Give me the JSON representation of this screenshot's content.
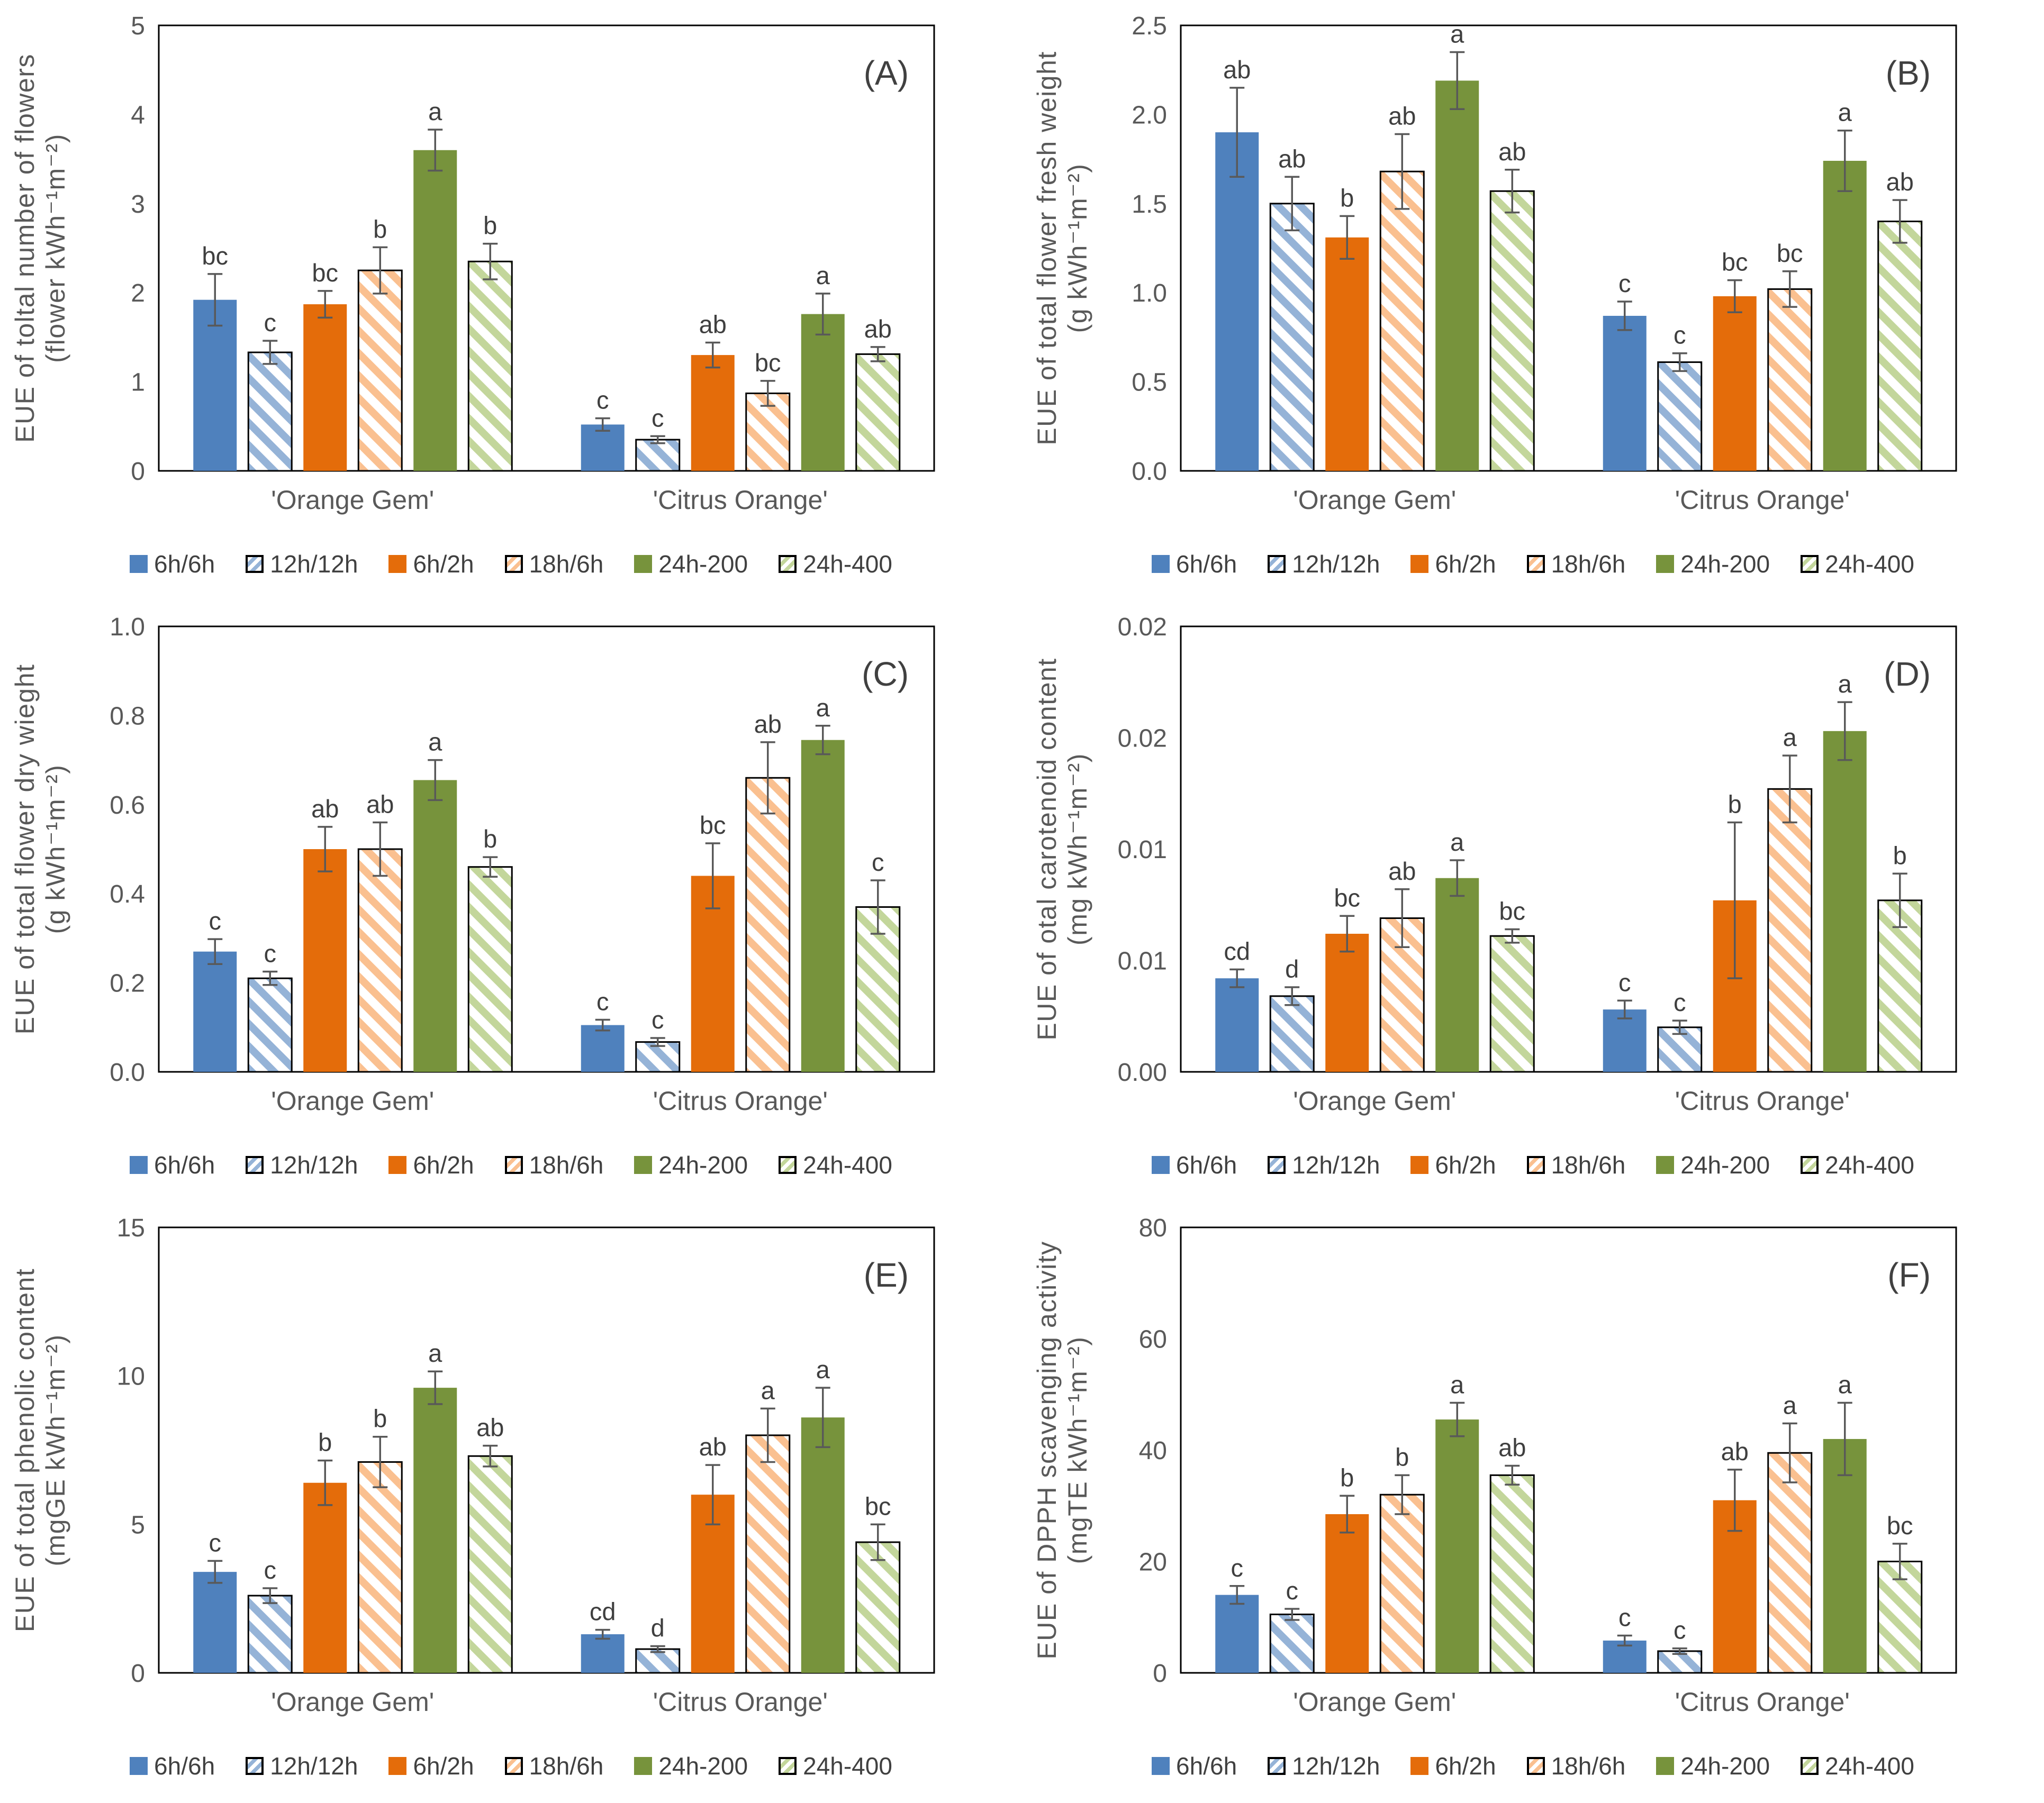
{
  "figure": {
    "groups": [
      "'Orange Gem'",
      "'Citrus Orange'"
    ],
    "colors": {
      "axis_text": "#595959",
      "letter_text": "#3f3f3f",
      "panel_tag": "#404040",
      "error_bar": "#595959",
      "frame": "#000000",
      "background": "#ffffff"
    },
    "legend": [
      {
        "label": "6h/6h",
        "color": "#4F81BD",
        "hatched": false
      },
      {
        "label": "12h/12h",
        "color": "#95B3D7",
        "hatched": true
      },
      {
        "label": "6h/2h",
        "color": "#E46C0A",
        "hatched": false
      },
      {
        "label": "18h/6h",
        "color": "#FAC090",
        "hatched": true
      },
      {
        "label": "24h-200",
        "color": "#77933C",
        "hatched": false
      },
      {
        "label": "24h-400",
        "color": "#C3D69B",
        "hatched": true
      }
    ]
  },
  "chart_data": [
    {
      "type": "bar",
      "tag": "(A)",
      "ylabel": "EUE of toltal number of flowers",
      "yunit": "(flower kWh⁻¹m⁻²)",
      "ylim": [
        0,
        5
      ],
      "yticks": [
        {
          "v": 0,
          "t": "0"
        },
        {
          "v": 1,
          "t": "1"
        },
        {
          "v": 2,
          "t": "2"
        },
        {
          "v": 3,
          "t": "3"
        },
        {
          "v": 4,
          "t": "4"
        },
        {
          "v": 5,
          "t": "5"
        }
      ],
      "categories": [
        "'Orange Gem'",
        "'Citrus Orange'"
      ],
      "legend_position": "bottom",
      "grid": false,
      "series": [
        {
          "name": "6h/6h",
          "values": [
            1.92,
            0.52
          ],
          "errors": [
            0.29,
            0.07
          ],
          "letters": [
            "bc",
            "c"
          ]
        },
        {
          "name": "12h/12h",
          "values": [
            1.33,
            0.35
          ],
          "errors": [
            0.13,
            0.04
          ],
          "letters": [
            "c",
            "c"
          ]
        },
        {
          "name": "6h/2h",
          "values": [
            1.87,
            1.3
          ],
          "errors": [
            0.15,
            0.14
          ],
          "letters": [
            "bc",
            "ab"
          ]
        },
        {
          "name": "18h/6h",
          "values": [
            2.25,
            0.87
          ],
          "errors": [
            0.26,
            0.14
          ],
          "letters": [
            "b",
            "bc"
          ]
        },
        {
          "name": "24h-200",
          "values": [
            3.6,
            1.76
          ],
          "errors": [
            0.23,
            0.23
          ],
          "letters": [
            "a",
            "a"
          ]
        },
        {
          "name": "24h-400",
          "values": [
            2.35,
            1.31
          ],
          "errors": [
            0.2,
            0.08
          ],
          "letters": [
            "b",
            "ab"
          ]
        }
      ]
    },
    {
      "type": "bar",
      "tag": "(B)",
      "ylabel": "EUE of total flower fresh weight",
      "yunit": "(g kWh⁻¹m⁻²)",
      "ylim": [
        0,
        2.5
      ],
      "yticks": [
        {
          "v": 0,
          "t": "0.0"
        },
        {
          "v": 0.5,
          "t": "0.5"
        },
        {
          "v": 1.0,
          "t": "1.0"
        },
        {
          "v": 1.5,
          "t": "1.5"
        },
        {
          "v": 2.0,
          "t": "2.0"
        },
        {
          "v": 2.5,
          "t": "2.5"
        }
      ],
      "categories": [
        "'Orange Gem'",
        "'Citrus Orange'"
      ],
      "legend_position": "bottom",
      "grid": false,
      "series": [
        {
          "name": "6h/6h",
          "values": [
            1.9,
            0.87
          ],
          "errors": [
            0.25,
            0.08
          ],
          "letters": [
            "ab",
            "c"
          ]
        },
        {
          "name": "12h/12h",
          "values": [
            1.5,
            0.61
          ],
          "errors": [
            0.15,
            0.05
          ],
          "letters": [
            "ab",
            "c"
          ]
        },
        {
          "name": "6h/2h",
          "values": [
            1.31,
            0.98
          ],
          "errors": [
            0.12,
            0.09
          ],
          "letters": [
            "b",
            "bc"
          ]
        },
        {
          "name": "18h/6h",
          "values": [
            1.68,
            1.02
          ],
          "errors": [
            0.21,
            0.1
          ],
          "letters": [
            "ab",
            "bc"
          ]
        },
        {
          "name": "24h-200",
          "values": [
            2.19,
            1.74
          ],
          "errors": [
            0.16,
            0.17
          ],
          "letters": [
            "a",
            "a"
          ]
        },
        {
          "name": "24h-400",
          "values": [
            1.57,
            1.4
          ],
          "errors": [
            0.12,
            0.12
          ],
          "letters": [
            "ab",
            "ab"
          ]
        }
      ]
    },
    {
      "type": "bar",
      "tag": "(C)",
      "ylabel": "EUE of total flower dry wieght",
      "yunit": "(g kWh⁻¹m⁻²)",
      "ylim": [
        0,
        1.0
      ],
      "yticks": [
        {
          "v": 0,
          "t": "0.0"
        },
        {
          "v": 0.2,
          "t": "0.2"
        },
        {
          "v": 0.4,
          "t": "0.4"
        },
        {
          "v": 0.6,
          "t": "0.6"
        },
        {
          "v": 0.8,
          "t": "0.8"
        },
        {
          "v": 1.0,
          "t": "1.0"
        }
      ],
      "categories": [
        "'Orange Gem'",
        "'Citrus Orange'"
      ],
      "legend_position": "bottom",
      "grid": false,
      "series": [
        {
          "name": "6h/6h",
          "values": [
            0.27,
            0.105
          ],
          "errors": [
            0.028,
            0.012
          ],
          "letters": [
            "c",
            "c"
          ]
        },
        {
          "name": "12h/12h",
          "values": [
            0.21,
            0.067
          ],
          "errors": [
            0.015,
            0.009
          ],
          "letters": [
            "c",
            "c"
          ]
        },
        {
          "name": "6h/2h",
          "values": [
            0.5,
            0.44
          ],
          "errors": [
            0.05,
            0.073
          ],
          "letters": [
            "ab",
            "bc"
          ]
        },
        {
          "name": "18h/6h",
          "values": [
            0.5,
            0.66
          ],
          "errors": [
            0.06,
            0.08
          ],
          "letters": [
            "ab",
            "ab"
          ]
        },
        {
          "name": "24h-200",
          "values": [
            0.655,
            0.745
          ],
          "errors": [
            0.045,
            0.032
          ],
          "letters": [
            "a",
            "a"
          ]
        },
        {
          "name": "24h-400",
          "values": [
            0.46,
            0.37
          ],
          "errors": [
            0.022,
            0.06
          ],
          "letters": [
            "b",
            "c"
          ]
        }
      ]
    },
    {
      "type": "bar",
      "tag": "(D)",
      "ylabel": "EUE of otal carotenoid content",
      "yunit": "(mg kWh⁻¹m⁻²)",
      "ylim": [
        0,
        0.02
      ],
      "yticks": [
        {
          "v": 0,
          "t": "0.00"
        },
        {
          "v": 0.005,
          "t": "0.01"
        },
        {
          "v": 0.01,
          "t": "0.01"
        },
        {
          "v": 0.015,
          "t": "0.02"
        },
        {
          "v": 0.02,
          "t": "0.02"
        }
      ],
      "categories": [
        "'Orange Gem'",
        "'Citrus Orange'"
      ],
      "legend_position": "bottom",
      "grid": false,
      "series": [
        {
          "name": "6h/6h",
          "values": [
            0.0042,
            0.0028
          ],
          "errors": [
            0.0004,
            0.0004
          ],
          "letters": [
            "cd",
            "c"
          ]
        },
        {
          "name": "12h/12h",
          "values": [
            0.0034,
            0.002
          ],
          "errors": [
            0.0004,
            0.0003
          ],
          "letters": [
            "d",
            "c"
          ]
        },
        {
          "name": "6h/2h",
          "values": [
            0.0062,
            0.0077
          ],
          "errors": [
            0.0008,
            0.0035
          ],
          "letters": [
            "bc",
            "b"
          ]
        },
        {
          "name": "18h/6h",
          "values": [
            0.0069,
            0.0127
          ],
          "errors": [
            0.0013,
            0.0015
          ],
          "letters": [
            "ab",
            "a"
          ]
        },
        {
          "name": "24h-200",
          "values": [
            0.0087,
            0.0153
          ],
          "errors": [
            0.0008,
            0.0013
          ],
          "letters": [
            "a",
            "a"
          ]
        },
        {
          "name": "24h-400",
          "values": [
            0.0061,
            0.0077
          ],
          "errors": [
            0.0003,
            0.0012
          ],
          "letters": [
            "bc",
            "b"
          ]
        }
      ]
    },
    {
      "type": "bar",
      "tag": "(E)",
      "ylabel": "EUE of total phenolic content",
      "yunit": "(mgGE kWh⁻¹m⁻²)",
      "ylim": [
        0,
        15
      ],
      "yticks": [
        {
          "v": 0,
          "t": "0"
        },
        {
          "v": 5,
          "t": "5"
        },
        {
          "v": 10,
          "t": "10"
        },
        {
          "v": 15,
          "t": "15"
        }
      ],
      "categories": [
        "'Orange Gem'",
        "'Citrus Orange'"
      ],
      "legend_position": "bottom",
      "grid": false,
      "series": [
        {
          "name": "6h/6h",
          "values": [
            3.4,
            1.3
          ],
          "errors": [
            0.37,
            0.15
          ],
          "letters": [
            "c",
            "cd"
          ]
        },
        {
          "name": "12h/12h",
          "values": [
            2.6,
            0.8
          ],
          "errors": [
            0.25,
            0.1
          ],
          "letters": [
            "c",
            "d"
          ]
        },
        {
          "name": "6h/2h",
          "values": [
            6.4,
            6.0
          ],
          "errors": [
            0.75,
            1.0
          ],
          "letters": [
            "b",
            "ab"
          ]
        },
        {
          "name": "18h/6h",
          "values": [
            7.1,
            8.0
          ],
          "errors": [
            0.85,
            0.9
          ],
          "letters": [
            "b",
            "a"
          ]
        },
        {
          "name": "24h-200",
          "values": [
            9.6,
            8.6
          ],
          "errors": [
            0.55,
            1.0
          ],
          "letters": [
            "a",
            "a"
          ]
        },
        {
          "name": "24h-400",
          "values": [
            7.3,
            4.4
          ],
          "errors": [
            0.35,
            0.6
          ],
          "letters": [
            "ab",
            "bc"
          ]
        }
      ]
    },
    {
      "type": "bar",
      "tag": "(F)",
      "ylabel": "EUE of DPPH scavenging activity",
      "yunit": "(mgTE kWh⁻¹m⁻²)",
      "ylim": [
        0,
        80
      ],
      "yticks": [
        {
          "v": 0,
          "t": "0"
        },
        {
          "v": 20,
          "t": "20"
        },
        {
          "v": 40,
          "t": "40"
        },
        {
          "v": 60,
          "t": "60"
        },
        {
          "v": 80,
          "t": "80"
        }
      ],
      "categories": [
        "'Orange Gem'",
        "'Citrus Orange'"
      ],
      "legend_position": "bottom",
      "grid": false,
      "series": [
        {
          "name": "6h/6h",
          "values": [
            14.0,
            5.8
          ],
          "errors": [
            1.6,
            0.9
          ],
          "letters": [
            "c",
            "c"
          ]
        },
        {
          "name": "12h/12h",
          "values": [
            10.5,
            3.9
          ],
          "errors": [
            1.0,
            0.5
          ],
          "letters": [
            "c",
            "c"
          ]
        },
        {
          "name": "6h/2h",
          "values": [
            28.5,
            31.0
          ],
          "errors": [
            3.3,
            5.5
          ],
          "letters": [
            "b",
            "ab"
          ]
        },
        {
          "name": "18h/6h",
          "values": [
            32.0,
            39.5
          ],
          "errors": [
            3.5,
            5.3
          ],
          "letters": [
            "b",
            "a"
          ]
        },
        {
          "name": "24h-200",
          "values": [
            45.5,
            42.0
          ],
          "errors": [
            3.0,
            6.5
          ],
          "letters": [
            "a",
            "a"
          ]
        },
        {
          "name": "24h-400",
          "values": [
            35.5,
            20.0
          ],
          "errors": [
            1.7,
            3.2
          ],
          "letters": [
            "ab",
            "bc"
          ]
        }
      ]
    }
  ]
}
